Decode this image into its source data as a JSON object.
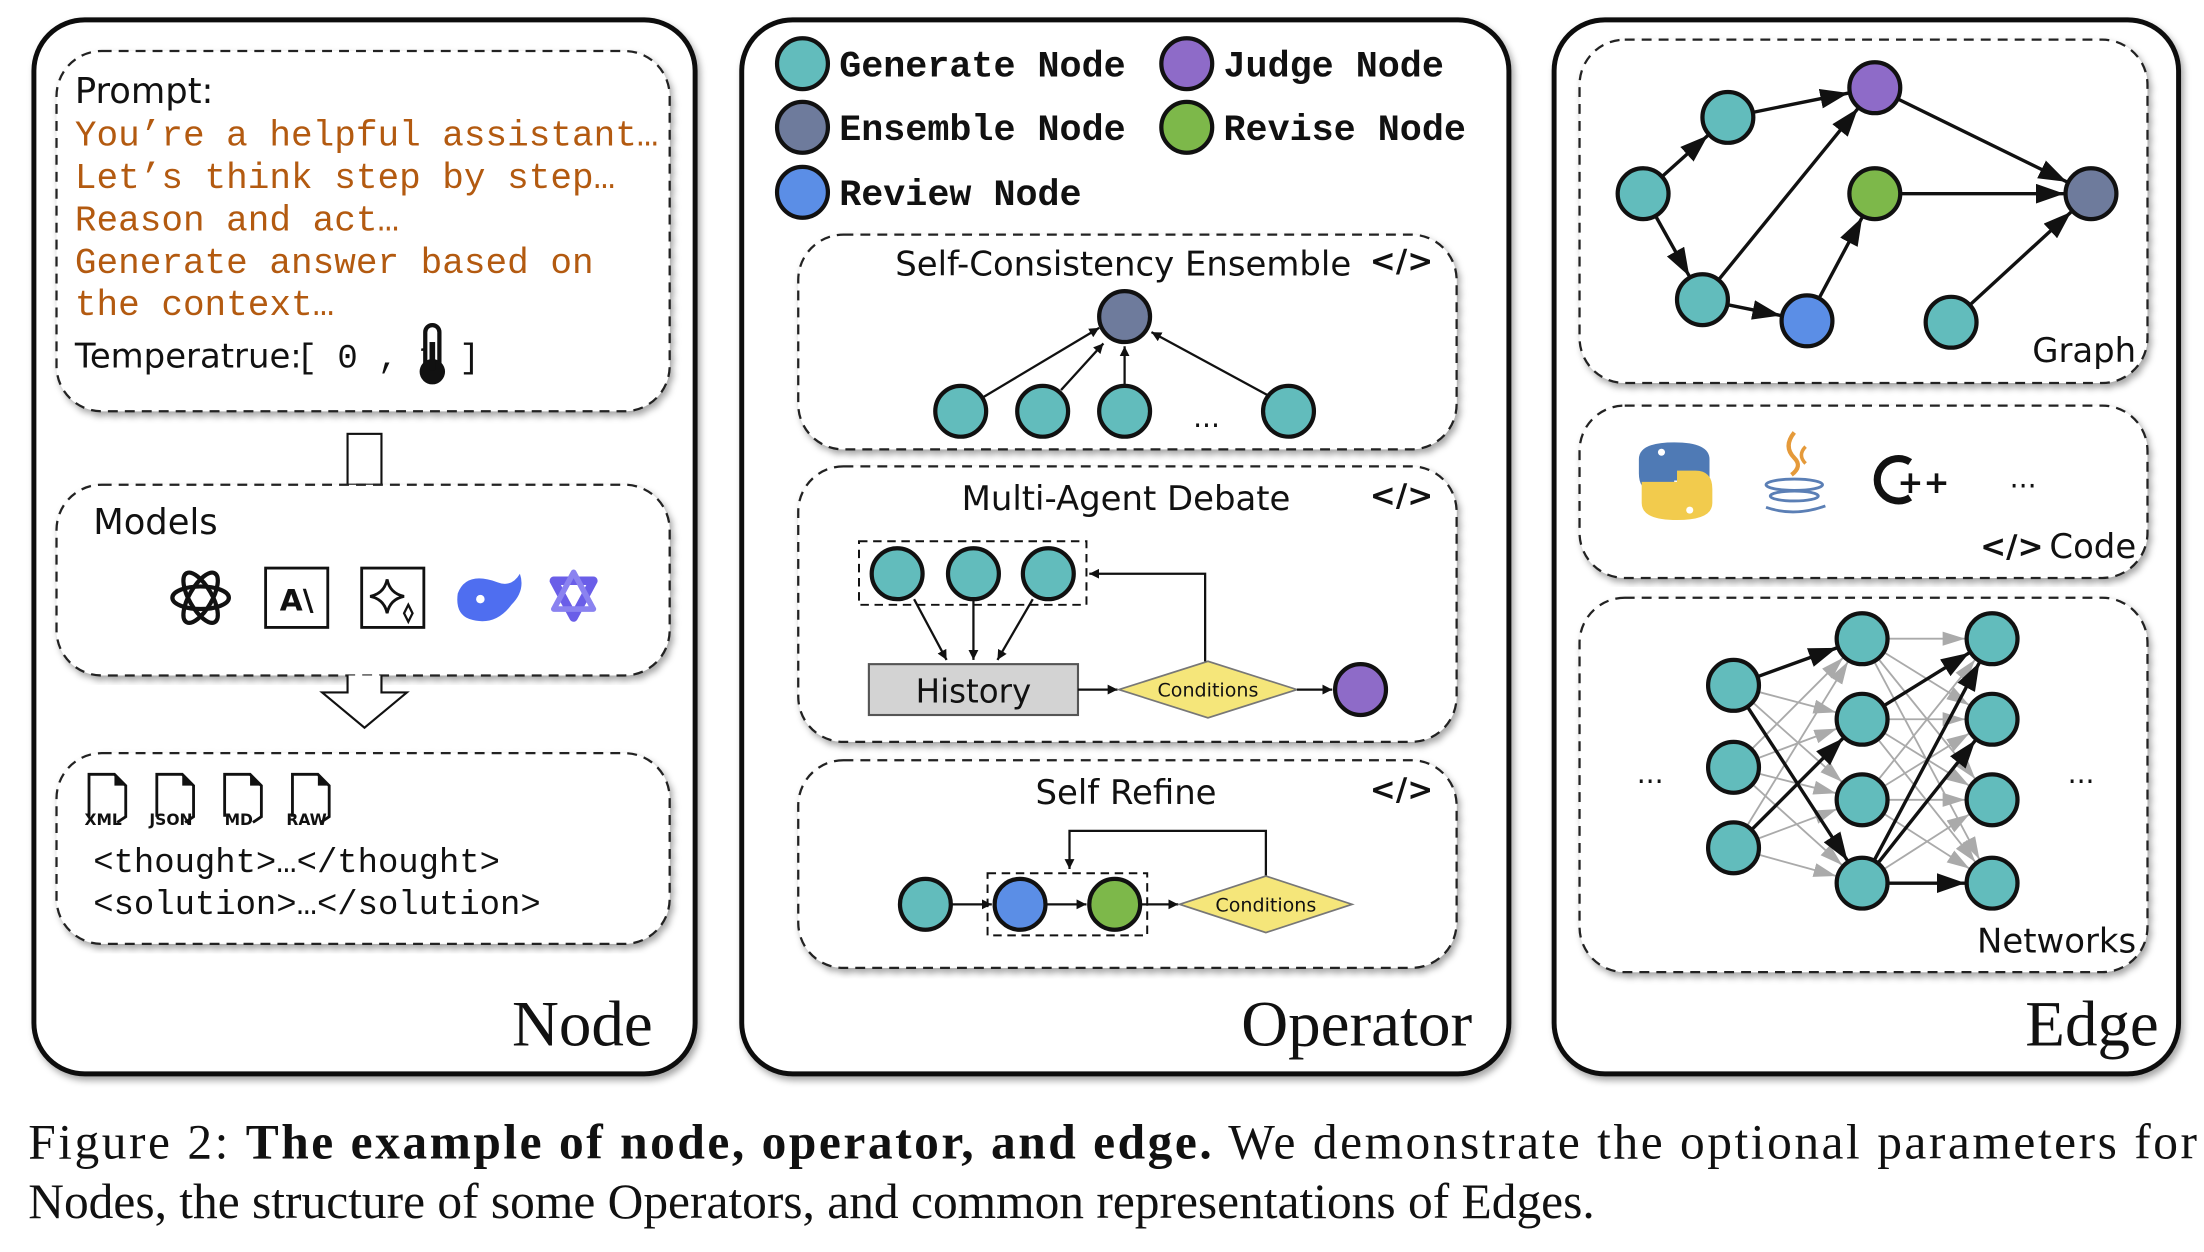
{
  "colors": {
    "generate": "#62bcbc",
    "judge": "#8e6bc8",
    "ensemble": "#6e7b9c",
    "revise": "#7db84a",
    "review": "#5b8ee6",
    "prompt_text": "#b35a10",
    "conditions_fill": "#f5e67a",
    "history_fill": "#d3d3d3",
    "model_blue": "#4f6ef0"
  },
  "node_panel": {
    "title": "Node",
    "prompt_label": "Prompt:",
    "prompt_lines": [
      "You’re a helpful assistant…",
      "Let’s think step by step…",
      "Reason and act…",
      "Generate answer based on",
      "the context…"
    ],
    "temperature_label": "Temperatrue:",
    "temperature_range": "[ 0 , 1 ]",
    "models_label": "Models",
    "model_icons": [
      "openai-icon",
      "anthropic-icon",
      "gemini-icon",
      "deepseek-icon",
      "qwen-icon"
    ],
    "formats": [
      "XML",
      "JSON",
      "MD",
      "RAW"
    ],
    "output_lines": [
      "<thought>…</thought>",
      "<solution>…</solution>"
    ]
  },
  "operator_panel": {
    "title": "Operator",
    "legend": [
      {
        "label": "Generate Node",
        "color": "#62bcbc"
      },
      {
        "label": "Judge Node",
        "color": "#8e6bc8"
      },
      {
        "label": "Ensemble Node",
        "color": "#6e7b9c"
      },
      {
        "label": "Revise Node",
        "color": "#7db84a"
      },
      {
        "label": "Review Node",
        "color": "#5b8ee6"
      }
    ],
    "self_consistency": {
      "title": "Self-Consistency Ensemble",
      "ellipsis": "..."
    },
    "debate": {
      "title": "Multi-Agent Debate",
      "history": "History",
      "conditions": "Conditions"
    },
    "self_refine": {
      "title": "Self Refine",
      "conditions": "Conditions"
    }
  },
  "edge_panel": {
    "title": "Edge",
    "graph_label": "Graph",
    "code_label": "Code",
    "code_icons": [
      "python-icon",
      "java-icon",
      "cpp-icon"
    ],
    "code_ellipsis": "...",
    "networks_label": "Networks",
    "networks_ellipsis": "..."
  },
  "caption": {
    "prefix": "Figure 2: ",
    "bold": "The example of node, operator, and edge.",
    "rest_line1": " We demonstrate the optional parameters for",
    "line2": "Nodes, the structure of some Operators, and common representations of Edges."
  }
}
